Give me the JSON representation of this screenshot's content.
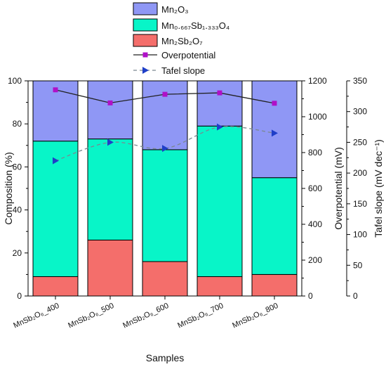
{
  "chart_data": {
    "type": "bar",
    "stacked": true,
    "categories": [
      "MnSb₂O₆_400",
      "MnSb₂O₆_500",
      "MnSb₂O₆_600",
      "MnSb₂O₆_700",
      "MnSb₂O₆_800"
    ],
    "xlabel": "Samples",
    "series": [
      {
        "name": "Mn₂Sb₂O₇",
        "type": "bar",
        "axis": "left",
        "color": "#f46e6b",
        "values": [
          9,
          26,
          16,
          9,
          10
        ]
      },
      {
        "name": "Mn₀.₆₆₇Sb₁.₃₃₃O₄",
        "type": "bar",
        "axis": "left",
        "color": "#08f5c8",
        "values": [
          63,
          47,
          52,
          70,
          45
        ]
      },
      {
        "name": "Mn₂O₃",
        "type": "bar",
        "axis": "left",
        "color": "#8f97f5",
        "values": [
          28,
          27,
          32,
          21,
          45
        ]
      },
      {
        "name": "Overpotential",
        "type": "line",
        "axis": "right1",
        "color": "#b010c8",
        "line_color": "#222222",
        "marker": "square",
        "values": [
          1150,
          1077,
          1125,
          1133,
          1075
        ]
      },
      {
        "name": "Tafel slope",
        "type": "line",
        "axis": "right2",
        "color": "#1f3fc8",
        "line_color": "#7a8890",
        "line_style": "dashed",
        "marker": "triangle-right",
        "values": [
          220,
          250,
          240,
          275,
          265
        ]
      }
    ],
    "axes": {
      "left": {
        "label": "Composition (%)",
        "range": [
          0,
          100
        ],
        "ticks": [
          "0",
          "20",
          "40",
          "60",
          "80",
          "100"
        ]
      },
      "right1": {
        "label": "Overpotential (mV)",
        "range": [
          0,
          1200
        ],
        "ticks": [
          "0",
          "200",
          "400",
          "600",
          "800",
          "1000",
          "1200"
        ]
      },
      "right2": {
        "label": "Tafel slope (mV dec⁻¹)",
        "range": [
          0,
          350
        ],
        "ticks": [
          "0",
          "50",
          "100",
          "150",
          "200",
          "250",
          "300",
          "350"
        ]
      }
    },
    "legend_position": "top-center",
    "grid": false
  }
}
